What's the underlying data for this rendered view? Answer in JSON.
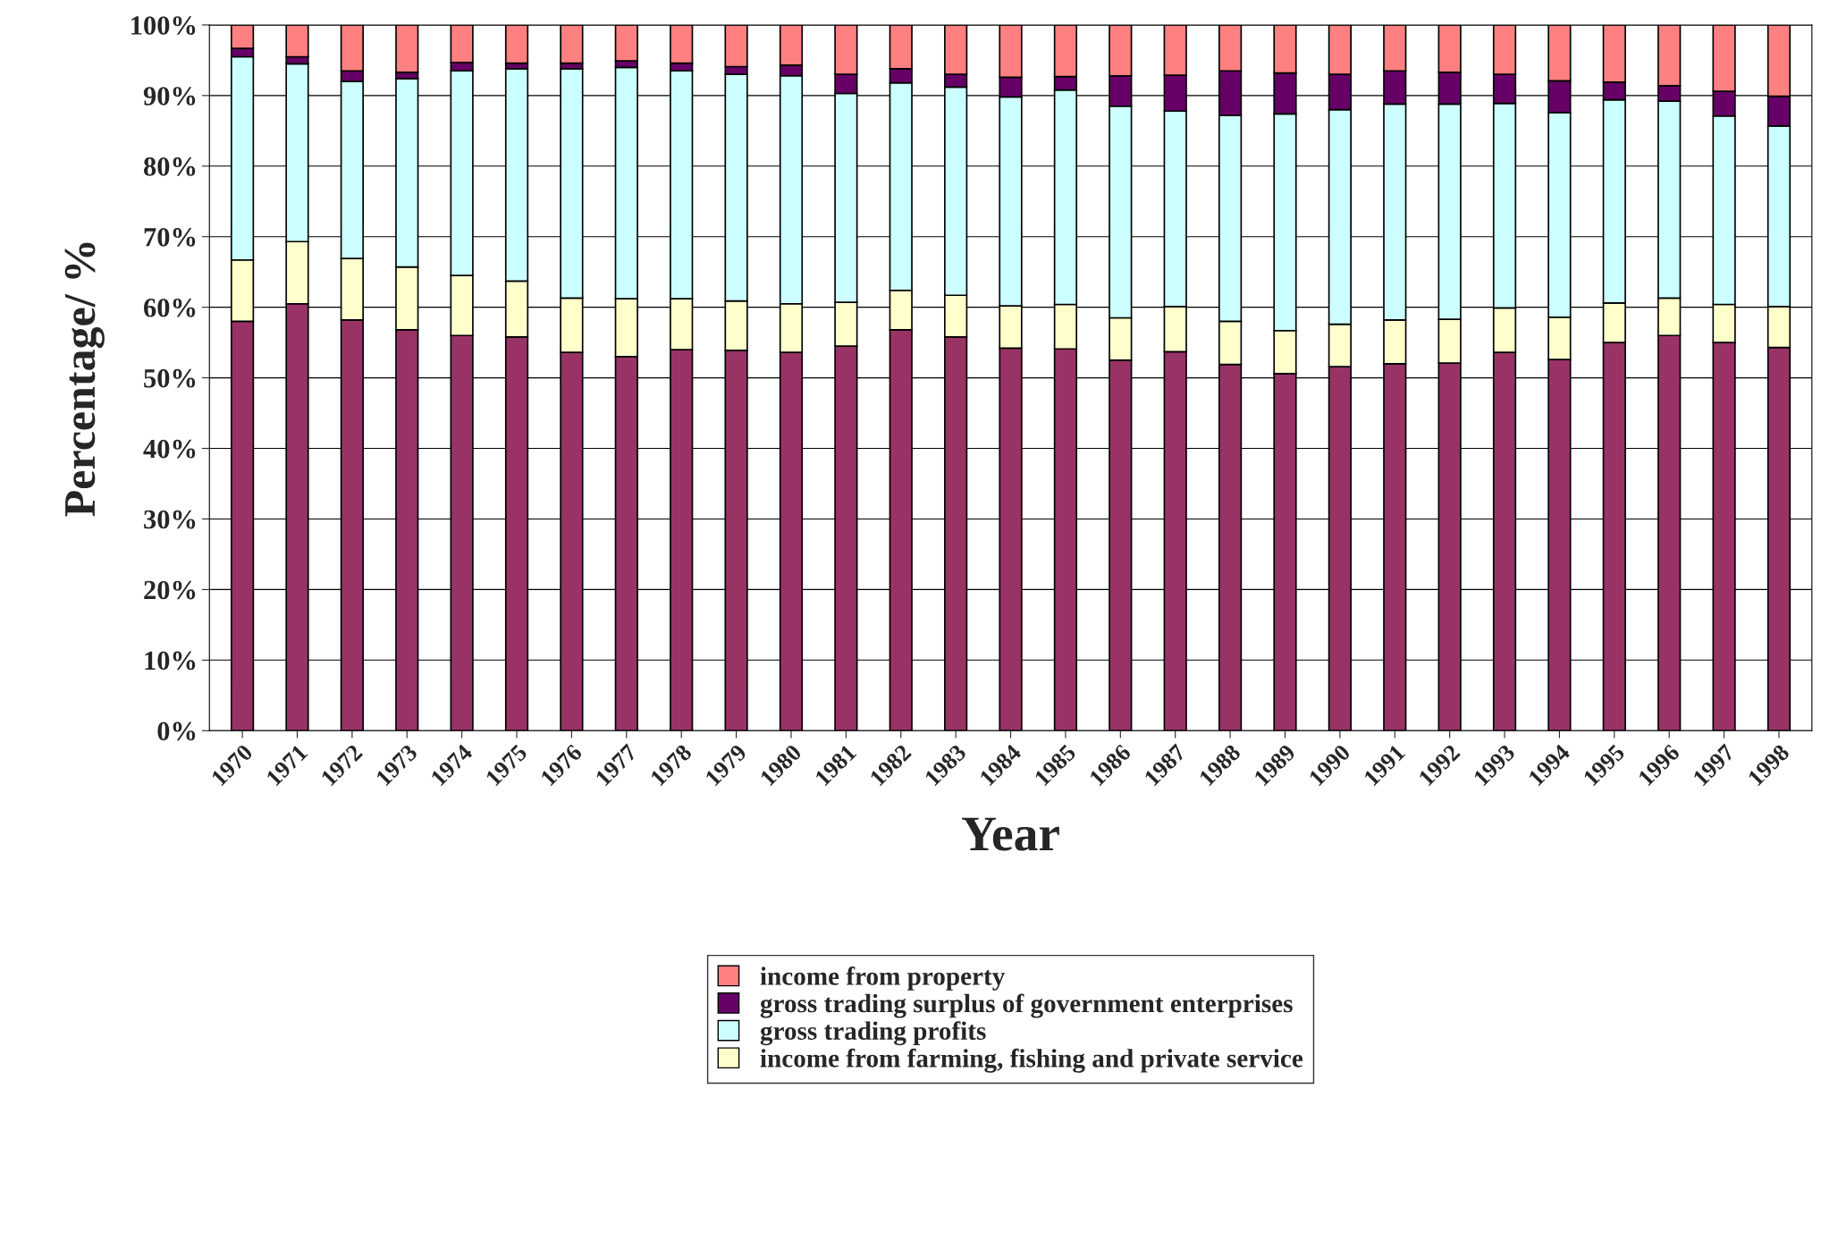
{
  "chart_data": {
    "type": "bar",
    "stacked": true,
    "xlabel": "Year",
    "ylabel": "Percentage/ %",
    "categories": [
      "1970",
      "1971",
      "1972",
      "1973",
      "1974",
      "1975",
      "1976",
      "1977",
      "1978",
      "1979",
      "1980",
      "1981",
      "1982",
      "1983",
      "1984",
      "1985",
      "1986",
      "1987",
      "1988",
      "1989",
      "1990",
      "1991",
      "1992",
      "1993",
      "1994",
      "1995",
      "1996",
      "1997",
      "1998"
    ],
    "series": [
      {
        "color": "#993366",
        "values": [
          58,
          60.5,
          58.2,
          56.8,
          56,
          55.8,
          53.6,
          53,
          54,
          53.9,
          53.6,
          54.5,
          56.8,
          55.8,
          54.2,
          54.1,
          52.5,
          53.7,
          51.9,
          50.6,
          51.6,
          52,
          52.1,
          53.6,
          52.6,
          55,
          56,
          55,
          54.3
        ]
      },
      {
        "name": "income from farming, fishing and private service",
        "color": "#ffffcc",
        "values": [
          8.7,
          8.8,
          8.7,
          8.9,
          8.5,
          7.9,
          7.7,
          8.2,
          7.2,
          7,
          6.9,
          6.2,
          5.6,
          5.9,
          6,
          6.3,
          6,
          6.4,
          6.1,
          6.1,
          6,
          6.2,
          6.2,
          6.3,
          6,
          5.6,
          5.3,
          5.4,
          5.8
        ]
      },
      {
        "name": "gross trading profits",
        "color": "#ccffff",
        "values": [
          28.8,
          25.2,
          25.1,
          26.7,
          29,
          30.1,
          32.5,
          32.8,
          32.3,
          32.1,
          32.3,
          29.6,
          29.4,
          29.5,
          29.6,
          30.4,
          30,
          27.7,
          29.2,
          30.7,
          30.4,
          30.6,
          30.5,
          29,
          29,
          28.8,
          27.9,
          26.7,
          25.6
        ]
      },
      {
        "name": "gross trading surplus of government enterprises",
        "color": "#660066",
        "values": [
          1.2,
          1,
          1.5,
          0.9,
          1.2,
          0.8,
          0.8,
          0.9,
          1.1,
          1.1,
          1.5,
          2.7,
          2,
          1.8,
          2.8,
          1.9,
          4.3,
          5.1,
          6.3,
          5.8,
          5,
          4.7,
          4.5,
          4.1,
          4.5,
          2.5,
          2.2,
          3.5,
          4.2
        ]
      },
      {
        "name": "income from property",
        "color": "#ff8080",
        "values": [
          3.3,
          4.5,
          6.5,
          6.7,
          5.3,
          5.4,
          5.4,
          5.1,
          5.4,
          5.9,
          5.7,
          7,
          6.2,
          7,
          7.4,
          7.3,
          7.2,
          7.1,
          6.5,
          6.8,
          7,
          6.5,
          6.7,
          7,
          7.9,
          8.1,
          8.6,
          9.4,
          10.1
        ]
      }
    ],
    "ylim": [
      0,
      100
    ],
    "yticks": [
      {
        "value": 0,
        "label": "0%"
      },
      {
        "value": 10,
        "label": "10%"
      },
      {
        "value": 20,
        "label": "20%"
      },
      {
        "value": 30,
        "label": "30%"
      },
      {
        "value": 40,
        "label": "40%"
      },
      {
        "value": 50,
        "label": "50%"
      },
      {
        "value": 60,
        "label": "60%"
      },
      {
        "value": 70,
        "label": "70%"
      },
      {
        "value": 80,
        "label": "80%"
      },
      {
        "value": 90,
        "label": "90%"
      },
      {
        "value": 100,
        "label": "100%"
      }
    ],
    "grid": "y",
    "legend": "bottom"
  }
}
